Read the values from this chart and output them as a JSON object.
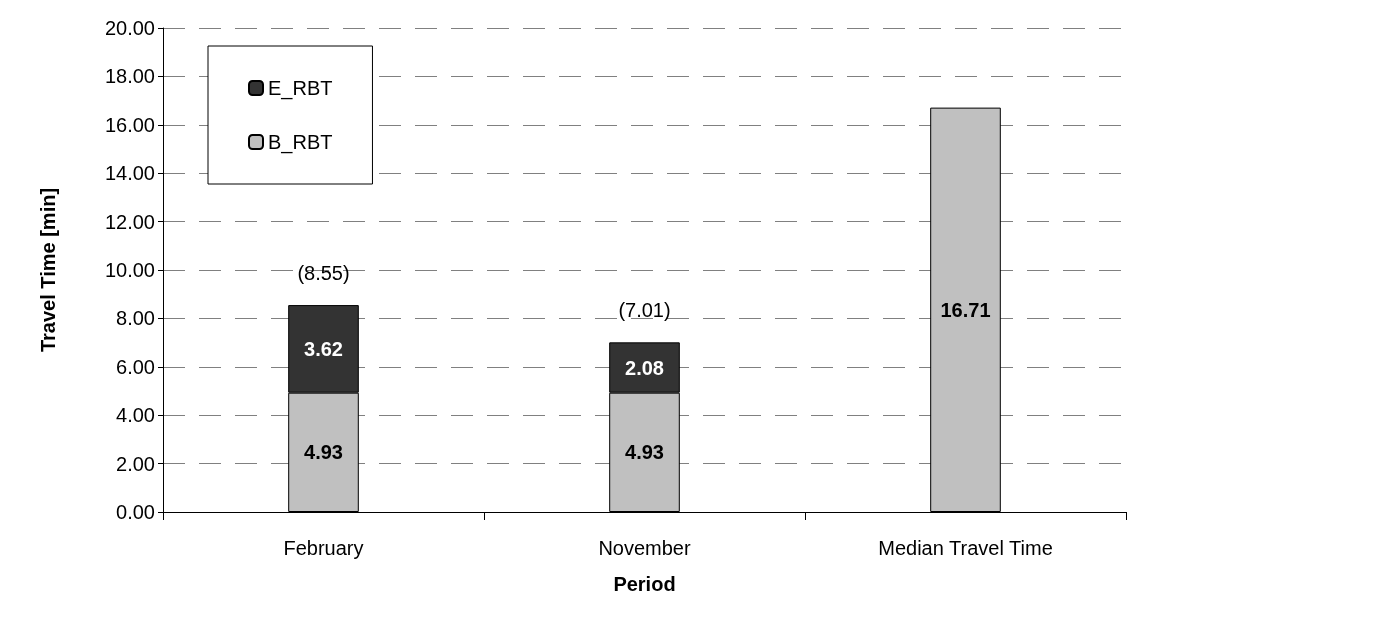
{
  "chart_data": {
    "type": "bar",
    "stacked": true,
    "xlabel": "Period",
    "ylabel": "Travel Time [min]",
    "categories": [
      "February",
      "November",
      "Median Travel Time"
    ],
    "series": [
      {
        "name": "B_RBT",
        "color": "#c0c0c0",
        "values": [
          4.93,
          4.93,
          16.71
        ]
      },
      {
        "name": "E_RBT",
        "color": "#333333",
        "values": [
          3.62,
          2.08,
          null
        ]
      }
    ],
    "totals": [
      "(8.55)",
      "(7.01)",
      null
    ],
    "data_labels": true,
    "ylim": [
      0,
      20
    ],
    "yticks": [
      {
        "value": 0,
        "label": "0.00"
      },
      {
        "value": 2,
        "label": "2.00"
      },
      {
        "value": 4,
        "label": "4.00"
      },
      {
        "value": 6,
        "label": "6.00"
      },
      {
        "value": 8,
        "label": "8.00"
      },
      {
        "value": 10,
        "label": "10.00"
      },
      {
        "value": 12,
        "label": "12.00"
      },
      {
        "value": 14,
        "label": "14.00"
      },
      {
        "value": 16,
        "label": "16.00"
      },
      {
        "value": 18,
        "label": "18.00"
      },
      {
        "value": 20,
        "label": "20.00"
      }
    ],
    "grid": "y",
    "legend": "top left"
  }
}
